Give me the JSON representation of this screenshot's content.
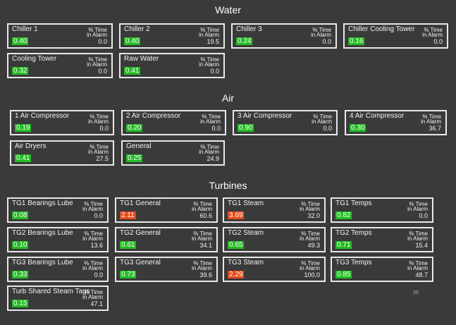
{
  "sections": [
    {
      "title": "Water",
      "tiles": [
        {
          "name": "Chiller 1",
          "value": "0.40",
          "status": "ok",
          "alarm_header": [
            "% Time",
            "in Alarm"
          ],
          "pct": "0.0"
        },
        {
          "name": "Chiller 2",
          "value": "0.40",
          "status": "ok",
          "alarm_header": [
            "% Time",
            "in Alarm"
          ],
          "pct": "19.5"
        },
        {
          "name": "Chiller 3",
          "value": "0.24",
          "status": "ok",
          "alarm_header": [
            "% Time",
            "in Alarm"
          ],
          "pct": "0.0"
        },
        {
          "name": "Chiller Cooling Tower",
          "value": "0.16",
          "status": "ok",
          "alarm_header": [
            "% Time",
            "in Alarm"
          ],
          "pct": "0.0"
        },
        {
          "name": "Cooling Tower",
          "value": "0.32",
          "status": "ok",
          "alarm_header": [
            "% Time",
            "in Alarm"
          ],
          "pct": "0.0"
        },
        {
          "name": "Raw Water",
          "value": "0.41",
          "status": "ok",
          "alarm_header": [
            "% Time",
            "in Alarm"
          ],
          "pct": "0.0"
        }
      ]
    },
    {
      "title": "Air",
      "tiles": [
        {
          "name": "1 Air Compressor",
          "value": "0.19",
          "status": "ok",
          "alarm_header": [
            "% Time",
            "in Alarm"
          ],
          "pct": "0.0"
        },
        {
          "name": "2 Air Compressor",
          "value": "0.20",
          "status": "ok",
          "alarm_header": [
            "% Time",
            "in Alarm"
          ],
          "pct": "0.0"
        },
        {
          "name": "3 Air Compressor",
          "value": "0.90",
          "status": "ok",
          "alarm_header": [
            "% Time",
            "in Alarm"
          ],
          "pct": "0.0"
        },
        {
          "name": "4 Air Compressor",
          "value": "0.30",
          "status": "ok",
          "alarm_header": [
            "% Time",
            "in Alarm"
          ],
          "pct": "36.7"
        },
        {
          "name": "Air Dryers",
          "value": "0.41",
          "status": "ok",
          "alarm_header": [
            "% Time",
            "in Alarm"
          ],
          "pct": "27.5"
        },
        {
          "name": "General",
          "value": "0.25",
          "status": "ok",
          "alarm_header": [
            "% Time",
            "in Alarm"
          ],
          "pct": "24.9"
        }
      ]
    },
    {
      "title": "Turbines",
      "tiles": [
        {
          "name": "TG1 Bearings Lube",
          "value": "0.08",
          "status": "ok",
          "alarm_header": [
            "% Time",
            "in Alarm"
          ],
          "pct": "0.0"
        },
        {
          "name": "TG1 General",
          "value": "2.11",
          "status": "alarm",
          "alarm_header": [
            "% Time",
            "in Alarm"
          ],
          "pct": "60.6"
        },
        {
          "name": "TG1 Steam",
          "value": "3.69",
          "status": "alarm",
          "alarm_header": [
            "% Time",
            "in Alarm"
          ],
          "pct": "32.0"
        },
        {
          "name": "TG1 Temps",
          "value": "0.82",
          "status": "ok",
          "alarm_header": [
            "% Time",
            "in Alarm"
          ],
          "pct": "0.0"
        },
        {
          "name": "TG2 Bearings Lube",
          "value": "0.10",
          "status": "ok",
          "alarm_header": [
            "% Time",
            "in Alarm"
          ],
          "pct": "13.6"
        },
        {
          "name": "TG2 General",
          "value": "0.61",
          "status": "ok",
          "alarm_header": [
            "% Time",
            "in Alarm"
          ],
          "pct": "34.1"
        },
        {
          "name": "TG2 Steam",
          "value": "0.65",
          "status": "ok",
          "alarm_header": [
            "% Time",
            "in Alarm"
          ],
          "pct": "49.3"
        },
        {
          "name": "TG2 Temps",
          "value": "0.71",
          "status": "ok",
          "alarm_header": [
            "% Time",
            "in Alarm"
          ],
          "pct": "15.4"
        },
        {
          "name": "TG3 Bearings Lube",
          "value": "0.33",
          "status": "ok",
          "alarm_header": [
            "% Time",
            "in Alarm"
          ],
          "pct": "0.0"
        },
        {
          "name": "TG3 General",
          "value": "0.73",
          "status": "ok",
          "alarm_header": [
            "% Time",
            "in Alarm"
          ],
          "pct": "39.6"
        },
        {
          "name": "TG3 Steam",
          "value": "2.29",
          "status": "alarm",
          "alarm_header": [
            "% Time",
            "in Alarm"
          ],
          "pct": "100.0"
        },
        {
          "name": "TG3 Temps",
          "value": "0.85",
          "status": "ok",
          "alarm_header": [
            "% Time",
            "in Alarm"
          ],
          "pct": "48.7"
        },
        {
          "name": "Turb Shared Steam Tags",
          "value": "0.15",
          "status": "ok",
          "alarm_header": [
            "% Time",
            "in Alarm"
          ],
          "pct": "47.1"
        }
      ]
    }
  ],
  "stray_text": "20",
  "colors": {
    "background": "#3a3a3a",
    "ok": "#22bb22",
    "alarm": "#e24a1a",
    "border": "#e8e8e8"
  }
}
